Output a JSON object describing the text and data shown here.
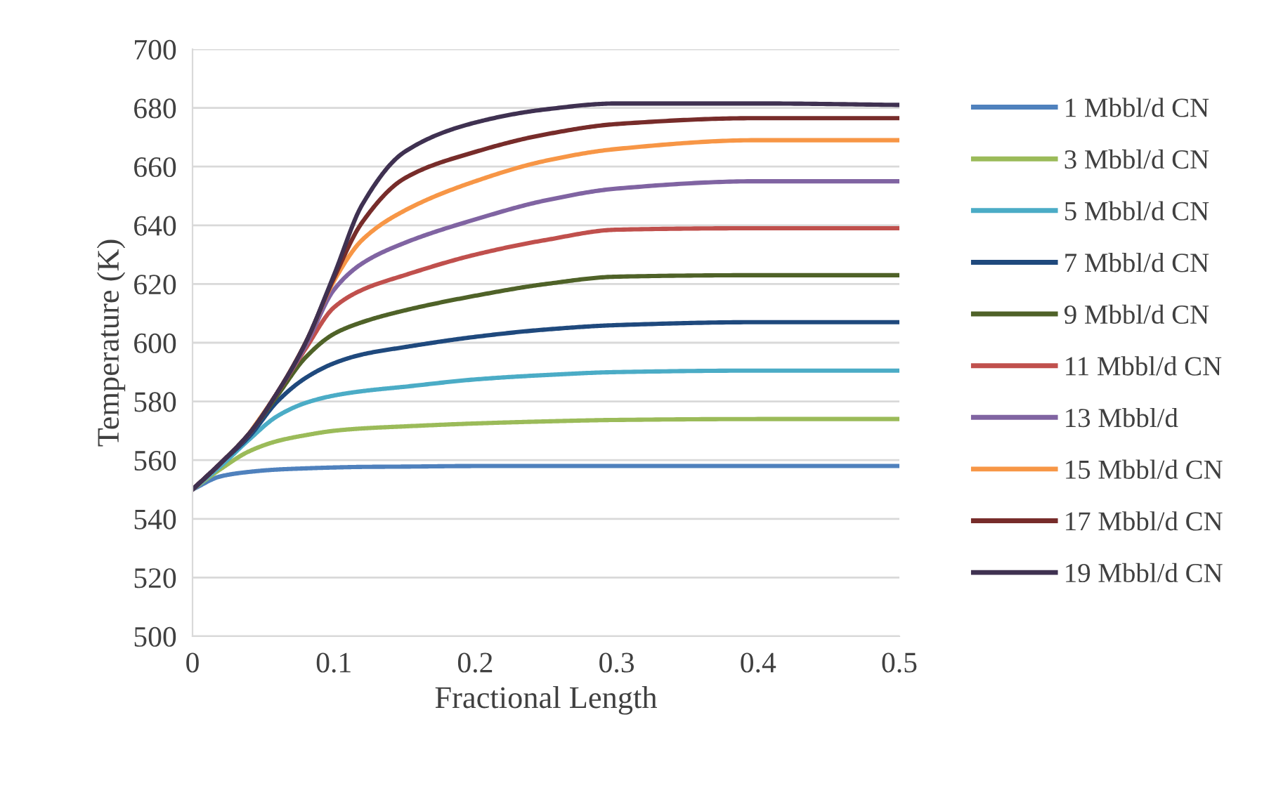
{
  "chart_data": {
    "type": "line",
    "xlabel": "Fractional Length",
    "ylabel": "Temperature (K)",
    "x": [
      0,
      0.02,
      0.04,
      0.06,
      0.08,
      0.1,
      0.12,
      0.15,
      0.2,
      0.25,
      0.3,
      0.4,
      0.5
    ],
    "xlim": [
      0,
      0.5
    ],
    "xticks": [
      0,
      0.1,
      0.2,
      0.3,
      0.4,
      0.5
    ],
    "ylim": [
      500,
      700
    ],
    "yticks": [
      500,
      520,
      540,
      560,
      580,
      600,
      620,
      640,
      660,
      680,
      700
    ],
    "grid": "y",
    "legend": "right",
    "marker": "none",
    "line_style": "solid",
    "series": [
      {
        "name": "1 Mbbl/d CN",
        "color": "#4f81bd",
        "values": [
          550,
          554.5,
          556,
          556.8,
          557.2,
          557.5,
          557.7,
          557.8,
          558,
          558,
          558,
          558,
          558
        ]
      },
      {
        "name": "3 Mbbl/d CN",
        "color": "#9bbb59",
        "values": [
          550,
          557,
          563,
          566.5,
          568.5,
          570,
          570.8,
          571.5,
          572.5,
          573.2,
          573.7,
          574,
          574
        ]
      },
      {
        "name": "5 Mbbl/d CN",
        "color": "#4bacc6",
        "values": [
          550,
          558,
          567,
          575,
          579.5,
          582,
          583.5,
          585,
          587.5,
          589,
          590,
          590.5,
          590.5
        ]
      },
      {
        "name": "7 Mbbl/d CN",
        "color": "#1f497d",
        "values": [
          550,
          559,
          568,
          580,
          588,
          593,
          596,
          598.5,
          602,
          604.5,
          606,
          607,
          607
        ]
      },
      {
        "name": "9 Mbbl/d CN",
        "color": "#4f6228",
        "values": [
          550,
          559,
          569,
          582,
          595,
          603,
          607,
          611,
          616,
          620,
          622.5,
          623,
          623
        ]
      },
      {
        "name": "11 Mbbl/d CN",
        "color": "#c0504d",
        "values": [
          550,
          559,
          569,
          583,
          598,
          612,
          618,
          623,
          630,
          635,
          638.5,
          639,
          639
        ]
      },
      {
        "name": "13 Mbbl/d",
        "color": "#8064a2",
        "values": [
          550,
          559,
          569,
          583,
          599,
          618,
          627,
          634,
          642,
          648.5,
          652.5,
          655,
          655
        ]
      },
      {
        "name": "15 Mbbl/d CN",
        "color": "#f79646",
        "values": [
          null,
          null,
          569,
          583,
          600,
          621,
          635,
          645,
          655,
          662,
          666,
          669,
          669
        ]
      },
      {
        "name": "17 Mbbl/d CN",
        "color": "#772c2a",
        "values": [
          550,
          559,
          569,
          583,
          600,
          622,
          641,
          656,
          665,
          671,
          674.5,
          676.5,
          676.5
        ]
      },
      {
        "name": "19 Mbbl/d CN",
        "color": "#3f3151",
        "values": [
          550,
          559,
          569,
          583,
          600,
          623,
          647,
          665,
          675,
          679.5,
          681.5,
          681.5,
          681
        ]
      }
    ]
  }
}
